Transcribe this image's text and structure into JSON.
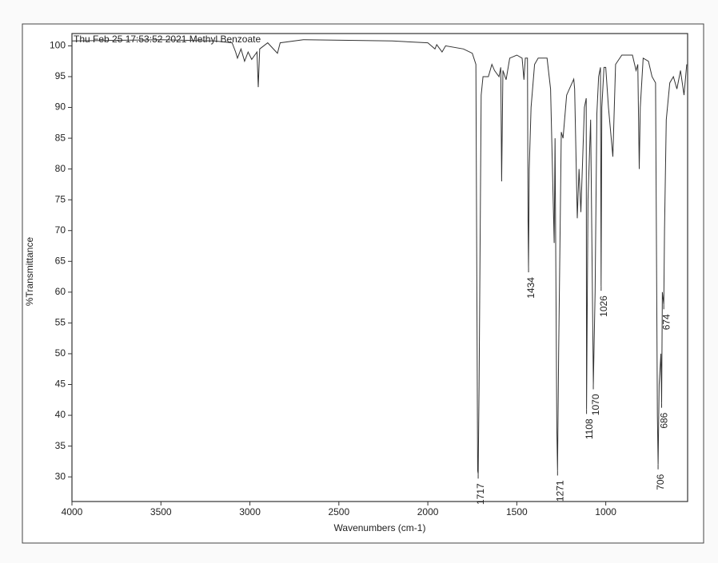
{
  "chart_data": {
    "type": "line",
    "title": "Thu Feb 25 17:53:52 2021 Methyl Benzoate",
    "x_label": "Wavenumbers (cm-1)",
    "y_label": "%Transmittance",
    "xlim": [
      4000,
      540
    ],
    "ylim": [
      26,
      102
    ],
    "xticks": [
      4000,
      3500,
      3000,
      2500,
      2000,
      1500,
      1000
    ],
    "yticks": [
      30,
      35,
      40,
      45,
      50,
      55,
      60,
      65,
      70,
      75,
      80,
      85,
      90,
      95,
      100
    ],
    "x": [
      4000,
      3500,
      3200,
      3100,
      3080,
      3070,
      3050,
      3030,
      3010,
      2990,
      2960,
      2953,
      2945,
      2900,
      2845,
      2830,
      2700,
      2200,
      2000,
      1960,
      1950,
      1920,
      1900,
      1800,
      1750,
      1730,
      1720,
      1717,
      1712,
      1700,
      1690,
      1660,
      1640,
      1625,
      1600,
      1590,
      1585,
      1578,
      1560,
      1540,
      1500,
      1470,
      1460,
      1452,
      1440,
      1437,
      1434,
      1430,
      1420,
      1400,
      1380,
      1330,
      1310,
      1290,
      1285,
      1275,
      1271,
      1265,
      1250,
      1240,
      1220,
      1180,
      1175,
      1160,
      1150,
      1140,
      1120,
      1110,
      1108,
      1100,
      1085,
      1070,
      1060,
      1050,
      1040,
      1030,
      1026,
      1022,
      1010,
      1000,
      985,
      960,
      945,
      910,
      850,
      830,
      820,
      812,
      806,
      790,
      760,
      740,
      720,
      710,
      706,
      700,
      690,
      686,
      682,
      674,
      670,
      660,
      640,
      620,
      600,
      580,
      560,
      545
    ],
    "series": [
      {
        "color": "#333333",
        "values": [
          100.8,
          101,
          100.8,
          100.5,
          99,
          98,
          99.5,
          97.5,
          99,
          97.8,
          99,
          93.3,
          99.5,
          100.5,
          98.8,
          100.5,
          101,
          100.8,
          100.5,
          99.5,
          100.2,
          99,
          100,
          99.5,
          98.8,
          97,
          31,
          30.5,
          45,
          92,
          95,
          95,
          97,
          96,
          95,
          96.5,
          78,
          96,
          94.5,
          98,
          98.5,
          98,
          94.5,
          98,
          98,
          72,
          64,
          80,
          90,
          97,
          98,
          98,
          93,
          68,
          85,
          38,
          31,
          50,
          86,
          85,
          92,
          94.6,
          93,
          72,
          80,
          73,
          90,
          91.5,
          41,
          75,
          88,
          45,
          60,
          89,
          95,
          96.5,
          61,
          90,
          96.5,
          96.5,
          90,
          82,
          97,
          98.5,
          98.5,
          96,
          97,
          80,
          90,
          98,
          97.5,
          95,
          94,
          40,
          32,
          45,
          50,
          42,
          60,
          58,
          70,
          88,
          94,
          95,
          93,
          96,
          92,
          97
        ]
      }
    ],
    "annotations": [
      {
        "x": 1717,
        "y": 30.5
      },
      {
        "x": 1434,
        "y": 64
      },
      {
        "x": 1271,
        "y": 31
      },
      {
        "x": 1108,
        "y": 41
      },
      {
        "x": 1070,
        "y": 45
      },
      {
        "x": 1026,
        "y": 61
      },
      {
        "x": 706,
        "y": 32
      },
      {
        "x": 686,
        "y": 42
      },
      {
        "x": 674,
        "y": 58
      }
    ]
  }
}
